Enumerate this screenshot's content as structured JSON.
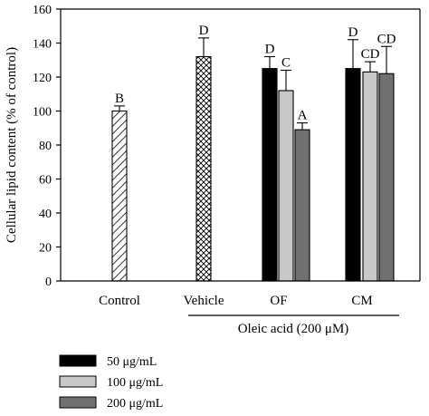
{
  "chart_data": {
    "type": "bar",
    "ylabel": "Cellular lipid content (% of control)",
    "ylim": [
      0,
      160
    ],
    "yticks": [
      0,
      20,
      40,
      60,
      80,
      100,
      120,
      140,
      160
    ],
    "categories": [
      "Control",
      "Vehicle",
      "OF",
      "CM"
    ],
    "group_label": "Oleic acid (200 μM)",
    "legend": [
      {
        "name": "50 μg/mL",
        "fill": "#000000"
      },
      {
        "name": "100 μg/mL",
        "fill": "#c8c8c8"
      },
      {
        "name": "200 μg/mL",
        "fill": "#707070"
      }
    ],
    "bars": [
      {
        "category": "Control",
        "series": "control",
        "value": 100,
        "error": 3,
        "letter": "B",
        "pattern": "hatch"
      },
      {
        "category": "Vehicle",
        "series": "vehicle",
        "value": 132,
        "error": 11,
        "letter": "D",
        "pattern": "cross"
      },
      {
        "category": "OF",
        "series": "50 μg/mL",
        "value": 125,
        "error": 7,
        "letter": "D",
        "pattern": "black"
      },
      {
        "category": "OF",
        "series": "100 μg/mL",
        "value": 112,
        "error": 12,
        "letter": "C",
        "pattern": "light"
      },
      {
        "category": "OF",
        "series": "200 μg/mL",
        "value": 89,
        "error": 4,
        "letter": "A",
        "pattern": "dark"
      },
      {
        "category": "CM",
        "series": "50 μg/mL",
        "value": 125,
        "error": 17,
        "letter": "D",
        "pattern": "black"
      },
      {
        "category": "CM",
        "series": "100 μg/mL",
        "value": 123,
        "error": 6,
        "letter": "CD",
        "pattern": "light"
      },
      {
        "category": "CM",
        "series": "200 μg/mL",
        "value": 122,
        "error": 16,
        "letter": "CD",
        "pattern": "dark"
      }
    ]
  }
}
